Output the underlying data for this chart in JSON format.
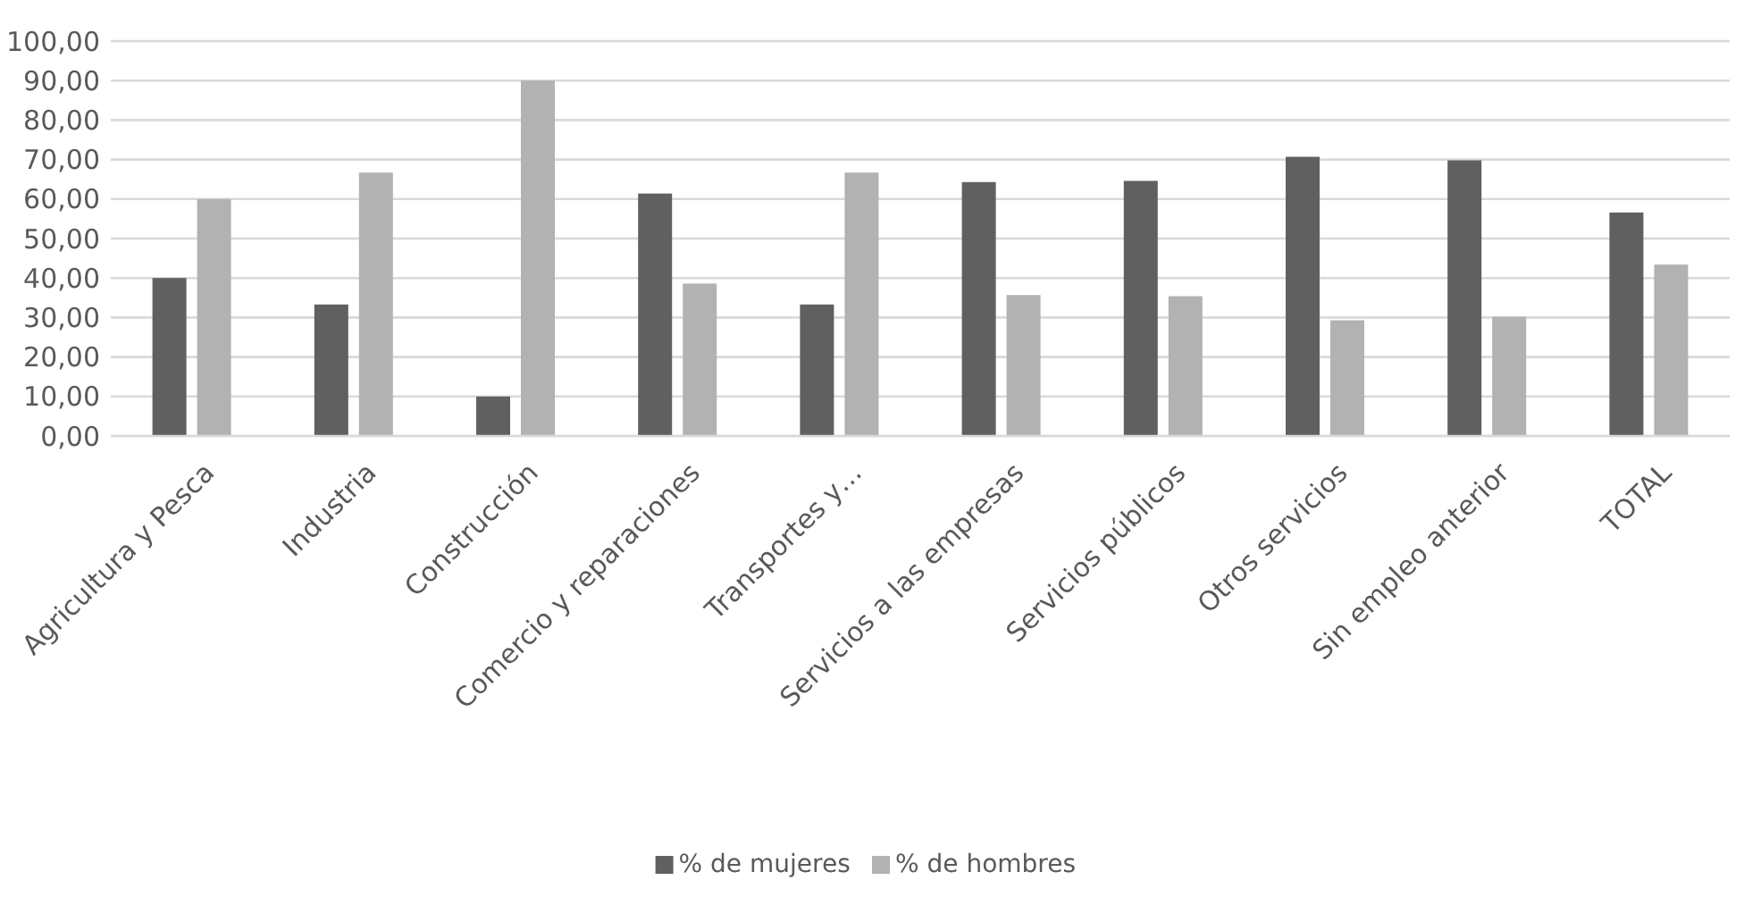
{
  "chart_data": {
    "type": "bar",
    "categories": [
      "Agricultura y Pesca",
      "Industria",
      "Construcción",
      "Comercio y reparaciones",
      "Transportes y…",
      "Servicios a las empresas",
      "Servicios públicos",
      "Otros servicios",
      "Sin empleo anterior",
      "TOTAL"
    ],
    "series": [
      {
        "name": "% de mujeres",
        "color": "#606060",
        "values": [
          40,
          33.3,
          10,
          61.4,
          33.3,
          64.3,
          64.6,
          70.7,
          69.8,
          56.6
        ]
      },
      {
        "name": "% de hombres",
        "color": "#b2b2b2",
        "values": [
          60,
          66.7,
          90,
          38.6,
          66.7,
          35.7,
          35.4,
          29.3,
          30.2,
          43.4
        ]
      }
    ],
    "ylim": [
      0,
      100
    ],
    "yticks": [
      {
        "value": 0,
        "label": "0,00"
      },
      {
        "value": 10,
        "label": "10,00"
      },
      {
        "value": 20,
        "label": "20,00"
      },
      {
        "value": 30,
        "label": "30,00"
      },
      {
        "value": 40,
        "label": "40,00"
      },
      {
        "value": 50,
        "label": "50,00"
      },
      {
        "value": 60,
        "label": "60,00"
      },
      {
        "value": 70,
        "label": "70,00"
      },
      {
        "value": 80,
        "label": "80,00"
      },
      {
        "value": 90,
        "label": "90,00"
      },
      {
        "value": 100,
        "label": "100,00"
      }
    ],
    "grid": "y",
    "legend": "bottom"
  }
}
